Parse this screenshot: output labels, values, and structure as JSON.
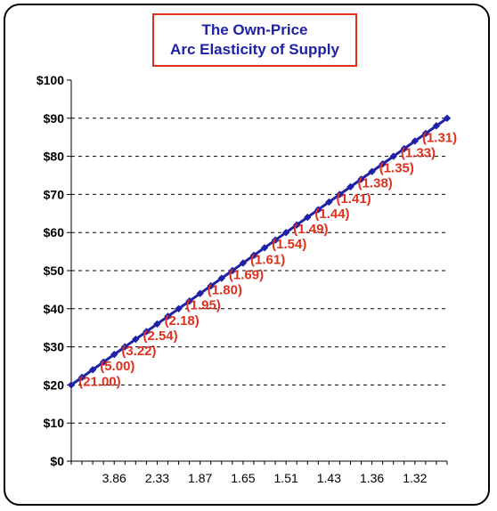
{
  "chart_data": {
    "type": "line",
    "title_lines": [
      "The Own-Price",
      "Arc Elasticity of Supply"
    ],
    "xlabel": "",
    "ylabel": "",
    "x": [
      1,
      2,
      3,
      4,
      5,
      6,
      7,
      8,
      9,
      10,
      11,
      12,
      13,
      14,
      15,
      16,
      17,
      18,
      19,
      20,
      21,
      22,
      23,
      24,
      25,
      26,
      27,
      28,
      29,
      30,
      31,
      32,
      33,
      34,
      35,
      36
    ],
    "values": [
      20,
      22,
      24,
      26,
      28,
      30,
      32,
      34,
      36,
      38,
      40,
      42,
      44,
      46,
      48,
      50,
      52,
      54,
      56,
      58,
      60,
      62,
      64,
      66,
      68,
      70,
      72,
      74,
      76,
      78,
      80,
      82,
      84,
      86,
      88,
      90
    ],
    "ylim": [
      0,
      100
    ],
    "y_ticks": [
      "$0",
      "$10",
      "$20",
      "$30",
      "$40",
      "$50",
      "$60",
      "$70",
      "$80",
      "$90",
      "$100"
    ],
    "x_tick_labels": [
      {
        "index": 4,
        "label": "3.86"
      },
      {
        "index": 8,
        "label": "2.33"
      },
      {
        "index": 12,
        "label": "1.87"
      },
      {
        "index": 16,
        "label": "1.65"
      },
      {
        "index": 20,
        "label": "1.51"
      },
      {
        "index": 24,
        "label": "1.43"
      },
      {
        "index": 28,
        "label": "1.36"
      },
      {
        "index": 32,
        "label": "1.32"
      }
    ],
    "point_labels": [
      {
        "index": 2,
        "label": "(21.00)"
      },
      {
        "index": 4,
        "label": "(5.00)"
      },
      {
        "index": 6,
        "label": "(3.22)"
      },
      {
        "index": 8,
        "label": "(2.54)"
      },
      {
        "index": 10,
        "label": "(2.18)"
      },
      {
        "index": 12,
        "label": "(1.95)"
      },
      {
        "index": 14,
        "label": "(1.80)"
      },
      {
        "index": 16,
        "label": "(1.69)"
      },
      {
        "index": 18,
        "label": "(1.61)"
      },
      {
        "index": 20,
        "label": "(1.54)"
      },
      {
        "index": 22,
        "label": "(1.49)"
      },
      {
        "index": 24,
        "label": "(1.44)"
      },
      {
        "index": 26,
        "label": "(1.41)"
      },
      {
        "index": 28,
        "label": "(1.38)"
      },
      {
        "index": 30,
        "label": "(1.35)"
      },
      {
        "index": 32,
        "label": "(1.33)"
      },
      {
        "index": 34,
        "label": "(1.31)"
      }
    ],
    "grid": "horizontal-dashed",
    "legend": "none",
    "colors": {
      "line": "#1f22a6",
      "labels": "#e0301e",
      "title_border": "#e0301e",
      "title_text": "#1f22a6"
    }
  }
}
